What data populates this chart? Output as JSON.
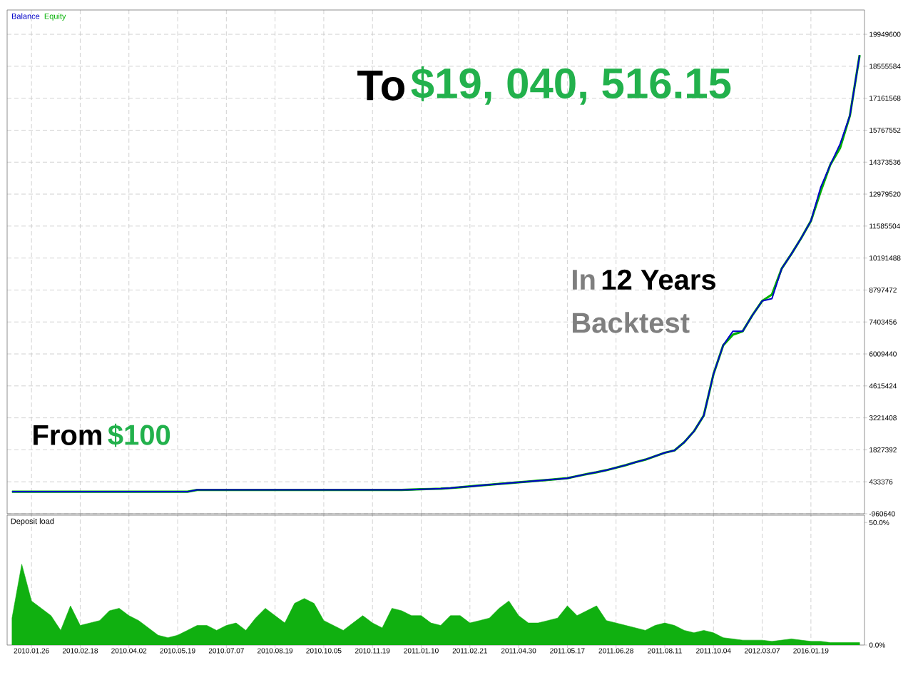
{
  "chart_data": [
    {
      "type": "line",
      "legend": "top left",
      "grid": true,
      "tick_labels": "y",
      "annotations": [
        "To",
        "$19, 040, 516.15",
        "From",
        "$100",
        "In",
        "12 Years",
        "Backtest"
      ],
      "categories": [
        null,
        null,
        "2010.01.26",
        null,
        null,
        null,
        null,
        "2010.02.18",
        null,
        null,
        null,
        null,
        "2010.04.02",
        null,
        null,
        null,
        null,
        "2010.05.19",
        null,
        null,
        null,
        null,
        "2010.07.07",
        null,
        null,
        null,
        null,
        "2010.08.19",
        null,
        null,
        null,
        null,
        "2010.10.05",
        null,
        null,
        null,
        null,
        "2010.11.19",
        null,
        null,
        null,
        null,
        "2011.01.10",
        null,
        null,
        null,
        null,
        "2011.02.21",
        null,
        null,
        null,
        null,
        "2011.04.30",
        null,
        null,
        null,
        null,
        "2011.05.17",
        null,
        null,
        null,
        null,
        "2011.06.28",
        null,
        null,
        null,
        null,
        "2011.08.11",
        null,
        null,
        null,
        null,
        "2011.10.04",
        null,
        null,
        null,
        null,
        "2012.03.07",
        null,
        null,
        null,
        null,
        "2016.01.19",
        null,
        null,
        null,
        null,
        null
      ],
      "series": [
        {
          "name": "Equity",
          "color": "#00b000",
          "values": [
            100,
            100,
            100,
            100,
            100,
            100,
            100,
            100,
            100,
            100,
            100,
            100,
            100,
            100,
            100,
            100,
            100,
            100,
            100,
            80000,
            80000,
            80000,
            80000,
            80000,
            80000,
            80000,
            80000,
            80000,
            80000,
            80000,
            80000,
            80000,
            80000,
            80000,
            80000,
            80000,
            80000,
            80000,
            80000,
            80000,
            80000,
            92000,
            106000,
            120000,
            134000,
            160000,
            196000,
            232000,
            270000,
            305000,
            340000,
            375000,
            410000,
            446000,
            480000,
            516000,
            550000,
            590000,
            680000,
            770000,
            850000,
            940000,
            1050000,
            1160000,
            1290000,
            1400000,
            1550000,
            1700000,
            1800000,
            2160000,
            2640000,
            3320000,
            5130000,
            6390000,
            6850000,
            7000000,
            7700000,
            8320000,
            8600000,
            9730000,
            10370000,
            11060000,
            11810000,
            13100000,
            14270000,
            15000000,
            16400000,
            19040000
          ]
        },
        {
          "name": "Balance",
          "color": "#0000c8",
          "values": [
            100,
            100,
            100,
            100,
            100,
            100,
            100,
            100,
            100,
            100,
            100,
            100,
            100,
            100,
            100,
            100,
            100,
            100,
            100,
            80000,
            80000,
            80000,
            80000,
            80000,
            80000,
            80000,
            80000,
            80000,
            80000,
            80000,
            80000,
            80000,
            80000,
            80000,
            80000,
            80000,
            80000,
            80000,
            80000,
            80000,
            80000,
            92000,
            106000,
            120000,
            134000,
            160000,
            196000,
            232000,
            270000,
            305000,
            340000,
            375000,
            410000,
            446000,
            480000,
            516000,
            550000,
            590000,
            680000,
            770000,
            850000,
            940000,
            1050000,
            1160000,
            1290000,
            1400000,
            1550000,
            1700000,
            1800000,
            2160000,
            2640000,
            3320000,
            5130000,
            6390000,
            7000000,
            7000000,
            7700000,
            8320000,
            8420000,
            9730000,
            10370000,
            11060000,
            11810000,
            13270000,
            14270000,
            15170000,
            16400000,
            19040000
          ]
        }
      ],
      "ylim": [
        -960640,
        21010000
      ],
      "yticks": [
        -960640,
        433376,
        1827392,
        3221408,
        4615424,
        6009440,
        7403456,
        8797472,
        10191488,
        11585504,
        12979520,
        14373536,
        15767552,
        17161568,
        18555584,
        19949600
      ]
    },
    {
      "type": "area",
      "title": "Deposit load",
      "grid": "x",
      "color": "#10b010",
      "categories": [
        null,
        null,
        "2010.01.26",
        null,
        null,
        null,
        null,
        "2010.02.18",
        null,
        null,
        null,
        null,
        "2010.04.02",
        null,
        null,
        null,
        null,
        "2010.05.19",
        null,
        null,
        null,
        null,
        "2010.07.07",
        null,
        null,
        null,
        null,
        "2010.08.19",
        null,
        null,
        null,
        null,
        "2010.10.05",
        null,
        null,
        null,
        null,
        "2010.11.19",
        null,
        null,
        null,
        null,
        "2011.01.10",
        null,
        null,
        null,
        null,
        "2011.02.21",
        null,
        null,
        null,
        null,
        "2011.04.30",
        null,
        null,
        null,
        null,
        "2011.05.17",
        null,
        null,
        null,
        null,
        "2011.06.28",
        null,
        null,
        null,
        null,
        "2011.08.11",
        null,
        null,
        null,
        null,
        "2011.10.04",
        null,
        null,
        null,
        null,
        "2012.03.07",
        null,
        null,
        null,
        null,
        "2016.01.19",
        null,
        null,
        null,
        null,
        null
      ],
      "values": [
        11,
        33,
        18,
        15,
        12,
        6,
        16,
        8,
        9,
        10,
        14,
        15,
        12,
        10,
        7,
        4,
        3,
        4,
        6,
        8,
        8,
        6,
        8,
        9,
        6,
        11,
        15,
        12,
        9,
        17,
        19,
        17,
        10,
        8,
        6,
        9,
        12,
        9,
        7,
        15,
        14,
        12,
        12,
        9,
        8,
        12,
        12,
        9,
        10,
        11,
        15,
        18,
        12,
        9,
        9,
        10,
        11,
        16,
        12,
        14,
        16,
        10,
        9,
        8,
        7,
        6,
        8,
        9,
        8,
        6,
        5,
        6,
        5,
        3,
        2.5,
        2,
        2,
        2,
        1.5,
        2,
        2.5,
        2,
        1.5,
        1.5,
        1,
        1,
        1,
        1
      ],
      "ylim": [
        0,
        53
      ],
      "yticks": [
        {
          "value": 0,
          "label": "0.0%"
        },
        {
          "value": 50,
          "label": "50.0%"
        }
      ]
    }
  ]
}
